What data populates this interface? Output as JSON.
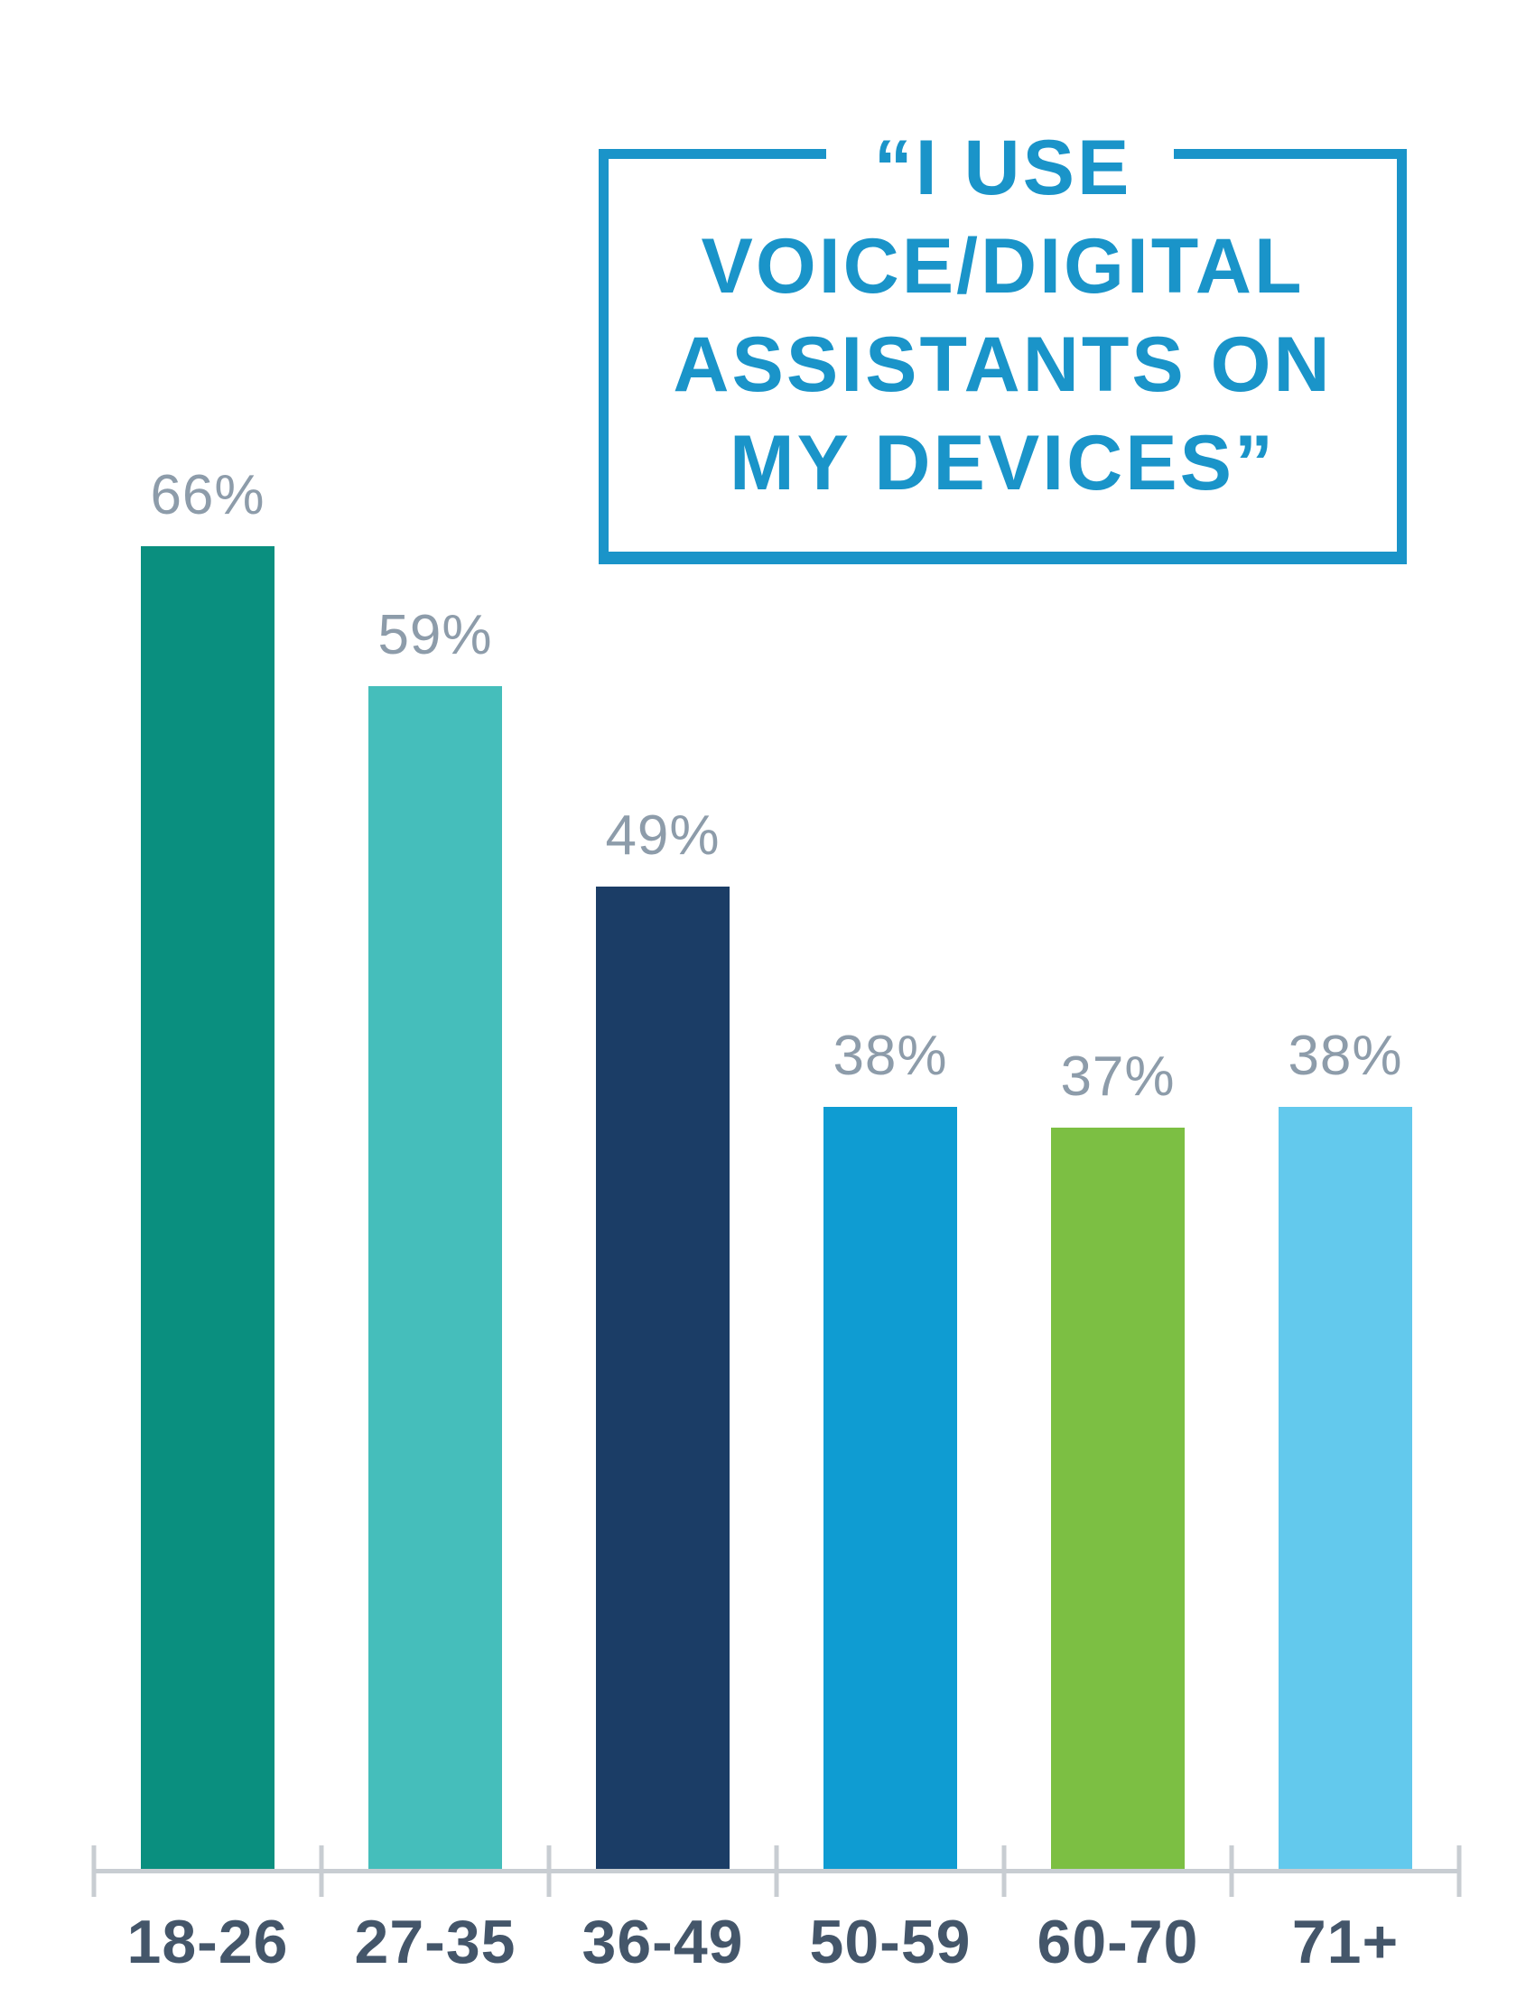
{
  "title": {
    "lines": [
      "“I USE",
      "VOICE/DIGITAL",
      "ASSISTANTS ON",
      "MY DEVICES”"
    ],
    "full": "“I USE VOICE/DIGITAL ASSISTANTS ON MY DEVICES”",
    "color": "#1a94c9"
  },
  "chart_data": {
    "type": "bar",
    "title": "“I USE VOICE/DIGITAL ASSISTANTS ON MY DEVICES”",
    "categories": [
      "18-26",
      "27-35",
      "36-49",
      "50-59",
      "60-70",
      "71+"
    ],
    "values": [
      66,
      59,
      49,
      38,
      37,
      38
    ],
    "value_labels": [
      "66%",
      "59%",
      "49%",
      "38%",
      "37%",
      "38%"
    ],
    "bar_colors": [
      "#0a8f7f",
      "#45bebb",
      "#1b3d66",
      "#0f9cd2",
      "#7cbf43",
      "#63c9ed"
    ],
    "xlabel": "",
    "ylabel": "",
    "ylim": [
      0,
      100
    ],
    "grid": false,
    "legend": "none",
    "value_label_color": "#8d9caa",
    "category_label_color": "#44566a",
    "axis_color": "#c8cdd2"
  }
}
